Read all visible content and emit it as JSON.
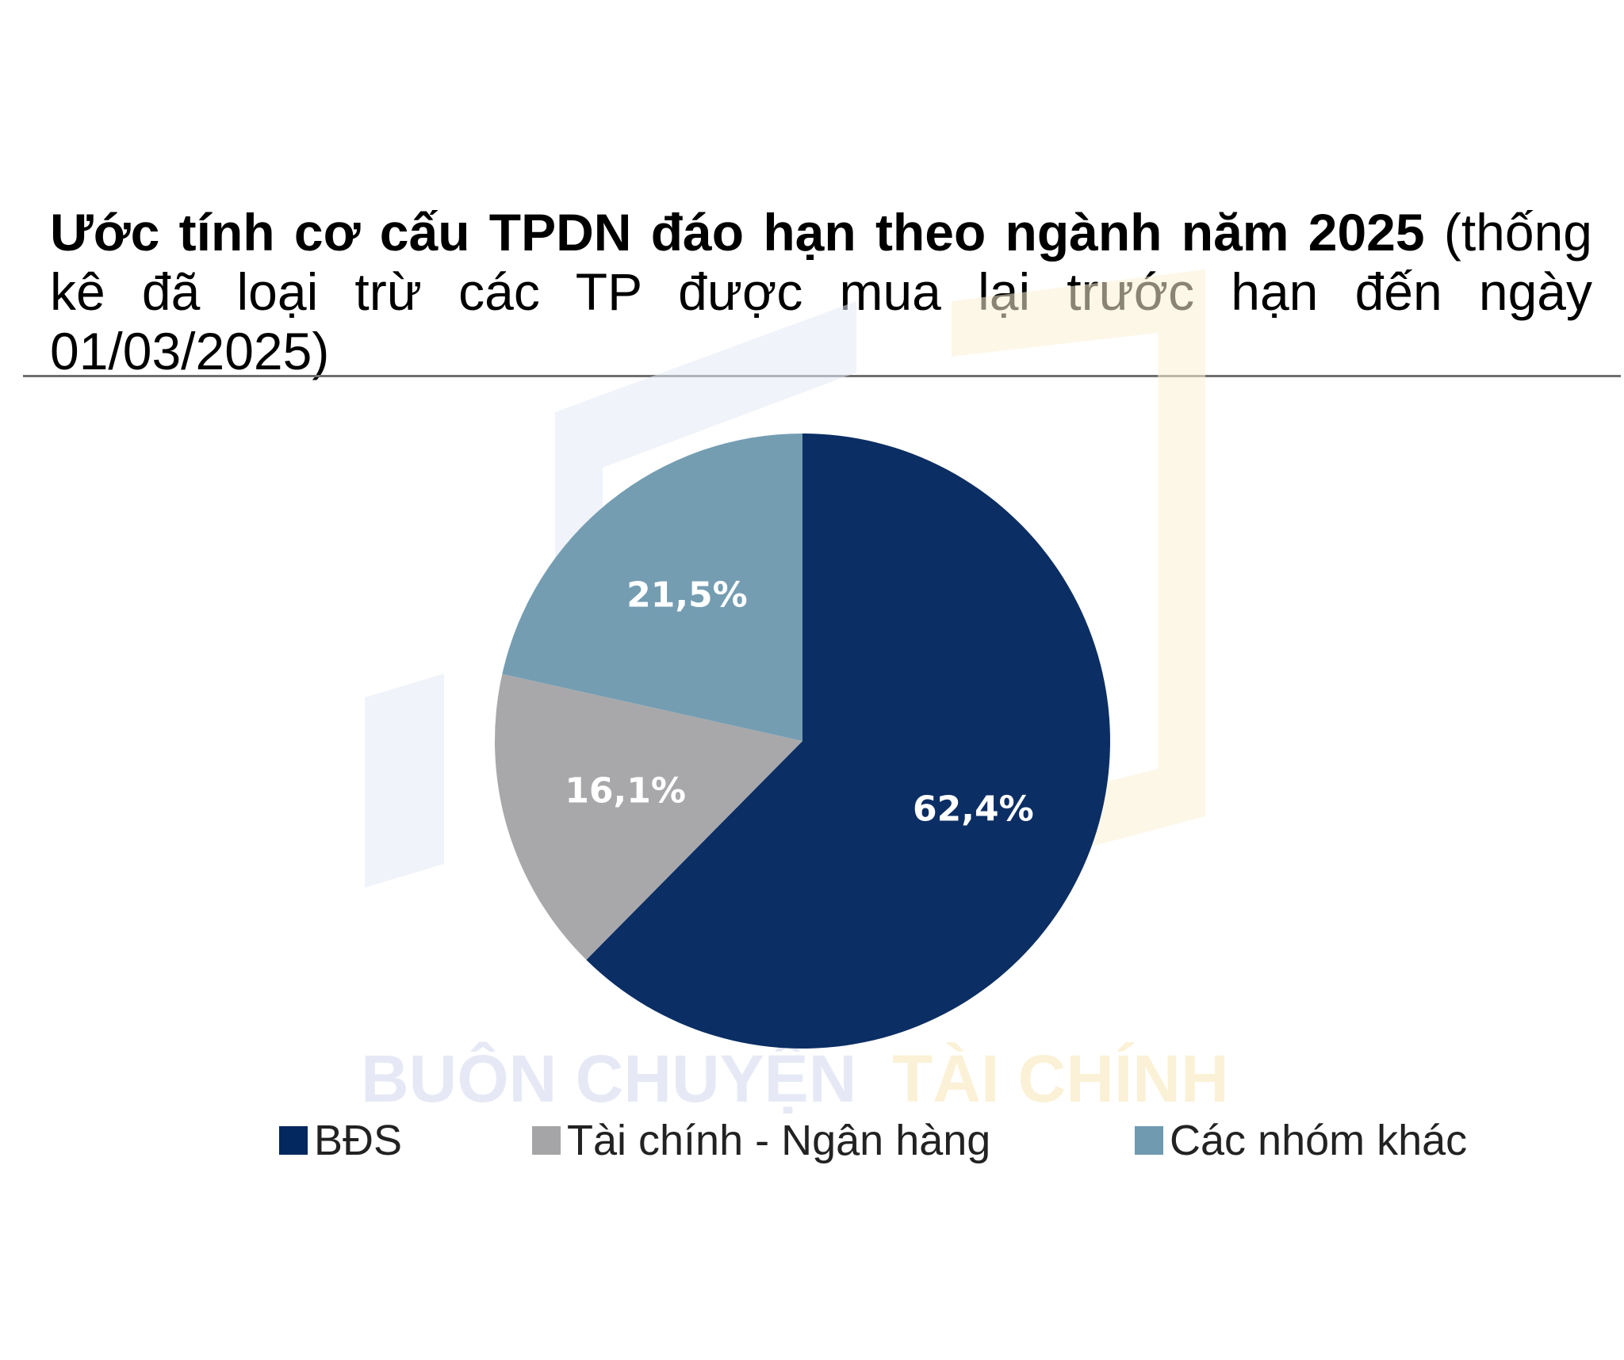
{
  "title": {
    "bold": "Ước tính cơ cấu TPDN đáo hạn theo ngành năm 2025",
    "normal": " (thống kê đã loại trừ các TP được mua lại trước hạn đến ngày 01/03/2025)"
  },
  "watermark": {
    "text_left": "BUÔN CHUYỆN",
    "text_right": "TÀI CHÍNH",
    "color_left": "#e6e9f5",
    "color_right": "#fbf1d6"
  },
  "colors": {
    "bds": "#03275f",
    "taichinh": "#a5a5a8",
    "khac": "#6f9ab0"
  },
  "chart_data": {
    "type": "pie",
    "title": "Ước tính cơ cấu TPDN đáo hạn theo ngành năm 2025 (thống kê đã loại trừ các TP được mua lại trước hạn đến ngày 01/03/2025)",
    "start_angle_deg": 0,
    "direction": "clockwise",
    "legend_position": "bottom",
    "slices": [
      {
        "name": "BĐS",
        "value": 62.4,
        "label": "62,4%",
        "color": "#03275f"
      },
      {
        "name": "Tài chính - Ngân hàng",
        "value": 16.1,
        "label": "16,1%",
        "color": "#a5a5a8"
      },
      {
        "name": "Các nhóm khác",
        "value": 21.5,
        "label": "21,5%",
        "color": "#6f9ab0"
      }
    ]
  },
  "legend": [
    {
      "label": "BĐS",
      "color": "#03275f"
    },
    {
      "label": "Tài chính - Ngân hàng",
      "color": "#a5a5a8"
    },
    {
      "label": "Các nhóm khác",
      "color": "#6f9ab0"
    }
  ]
}
